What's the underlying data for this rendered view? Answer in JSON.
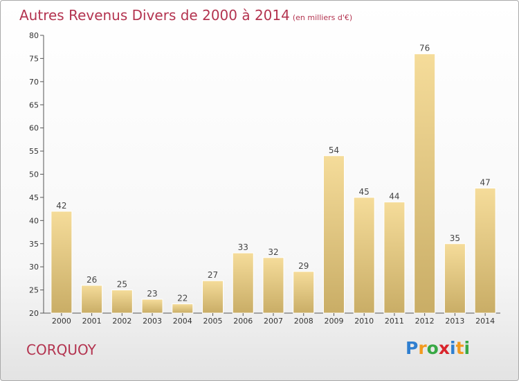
{
  "title": "Autres Revenus Divers de 2000 à 2014",
  "subtitle": "(en milliers d'€)",
  "commune": "CORQUOY",
  "logo": {
    "text": "Proxiti",
    "letters": [
      {
        "ch": "P",
        "color": "#2f7fd0"
      },
      {
        "ch": "r",
        "color": "#f29a1f"
      },
      {
        "ch": "o",
        "color": "#38a845"
      },
      {
        "ch": "x",
        "color": "#d9252c"
      },
      {
        "ch": "i",
        "color": "#2f7fd0"
      },
      {
        "ch": "t",
        "color": "#f29a1f"
      },
      {
        "ch": "i",
        "color": "#38a845"
      }
    ]
  },
  "colors": {
    "title": "#b3334f",
    "bar_light": "#f5dc9a",
    "bar_dark": "#c9ad66"
  },
  "chart_data": {
    "type": "bar",
    "title": "Autres Revenus Divers de 2000 à 2014",
    "subtitle": "(en milliers d'€)",
    "categories": [
      "2000",
      "2001",
      "2002",
      "2003",
      "2004",
      "2005",
      "2006",
      "2007",
      "2008",
      "2009",
      "2010",
      "2011",
      "2012",
      "2013",
      "2014"
    ],
    "values": [
      42,
      26,
      25,
      23,
      22,
      27,
      33,
      32,
      29,
      54,
      45,
      44,
      76,
      35,
      47
    ],
    "ylim": [
      20,
      80
    ],
    "yticks": [
      20,
      25,
      30,
      35,
      40,
      45,
      50,
      55,
      60,
      65,
      70,
      75,
      80
    ],
    "grid": false,
    "legend": "none"
  }
}
